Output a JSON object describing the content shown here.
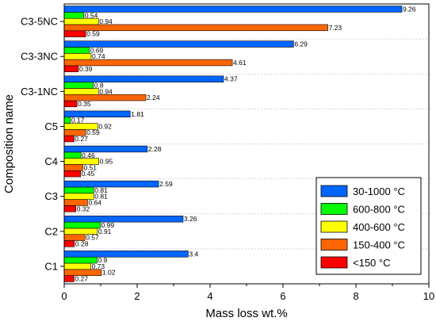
{
  "chart_data": {
    "type": "bar",
    "orientation": "horizontal",
    "title": "",
    "xlabel": "Mass loss wt.%",
    "ylabel": "Composition name",
    "xlim": [
      0,
      10
    ],
    "xticks": [
      "0",
      "2",
      "4",
      "6",
      "8",
      "10"
    ],
    "grid": true,
    "legend_position": "bottom-right",
    "categories": [
      "C1",
      "C2",
      "C3",
      "C4",
      "C5",
      "C3-1NC",
      "C3-3NC",
      "C3-5NC"
    ],
    "series": [
      {
        "name": "<150 °C",
        "color": "#ff0000",
        "values": [
          0.27,
          0.28,
          0.32,
          0.45,
          0.27,
          0.35,
          0.39,
          0.59
        ],
        "labels": [
          "0.27",
          "0.28",
          "0.32",
          "0.45",
          "0.27",
          "0.35",
          "0.39",
          "0.59"
        ]
      },
      {
        "name": "150-400 °C",
        "color": "#ff6600",
        "values": [
          1.02,
          0.57,
          0.64,
          0.51,
          0.59,
          2.24,
          4.61,
          7.23
        ],
        "labels": [
          "1.02",
          "0.57",
          "0.64",
          "0.51",
          "0.59",
          "2.24",
          "4.61",
          "7.23"
        ]
      },
      {
        "name": "400-600 °C",
        "color": "#ffff00",
        "values": [
          0.73,
          0.91,
          0.81,
          0.95,
          0.92,
          0.94,
          0.74,
          0.94
        ],
        "labels": [
          "0.73",
          "0.91",
          "0.81",
          "0.95",
          "0.92",
          "0.94",
          "0.74",
          "0.94"
        ]
      },
      {
        "name": "600-800 °C",
        "color": "#00ff00",
        "values": [
          0.9,
          0.99,
          0.81,
          0.46,
          0.17,
          0.8,
          0.69,
          0.54
        ],
        "labels": [
          "0.9",
          "0.99",
          "0.81",
          "0.46",
          "0.17",
          "0.8",
          "0.69",
          "0.54"
        ]
      },
      {
        "name": "30-1000 °C",
        "color": "#0066ff",
        "values": [
          3.4,
          3.26,
          2.59,
          2.28,
          1.81,
          4.37,
          6.29,
          9.26
        ],
        "labels": [
          "3.4",
          "3.26",
          "2.59",
          "2.28",
          "1.81",
          "4.37",
          "6.29",
          "9.26"
        ]
      }
    ],
    "legend_order": [
      "30-1000 °C",
      "600-800 °C",
      "400-600 °C",
      "150-400 °C",
      "<150 °C"
    ]
  }
}
